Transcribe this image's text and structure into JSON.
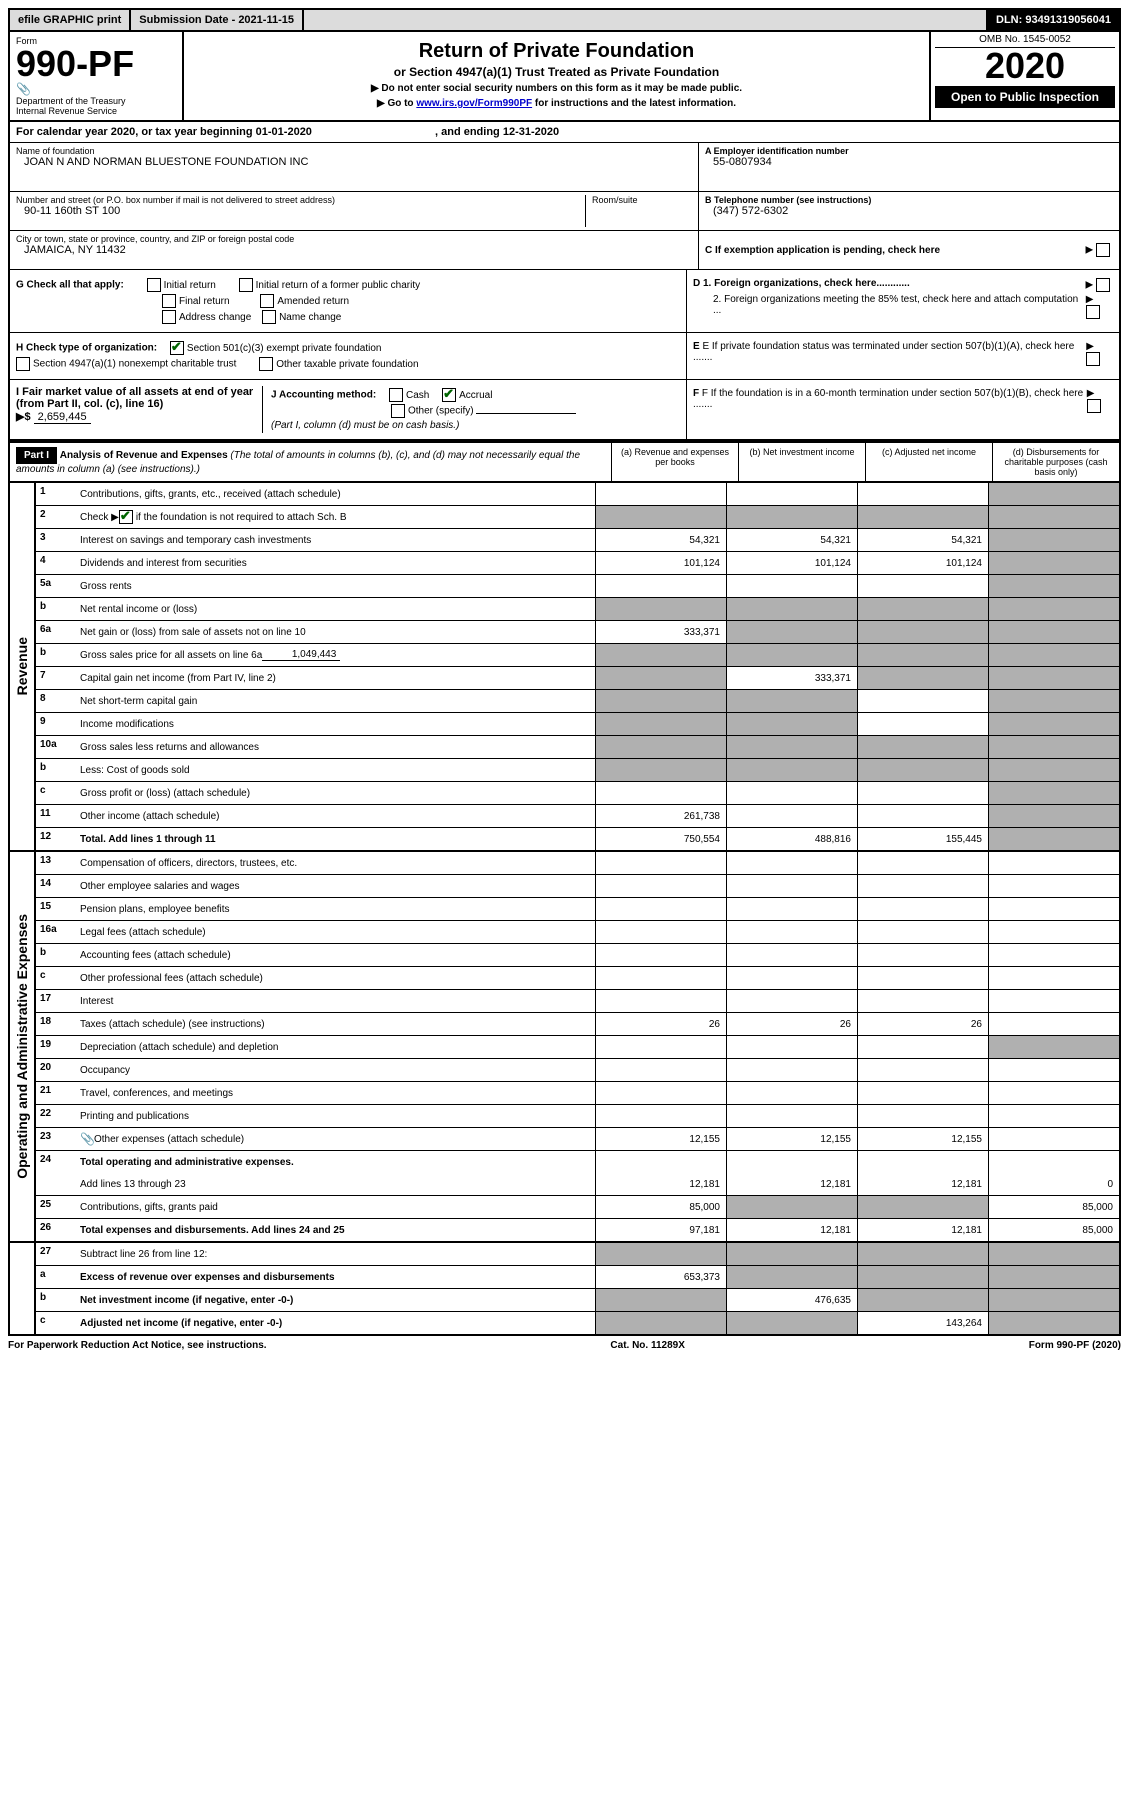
{
  "topbar": {
    "efile": "efile GRAPHIC print",
    "submission_label": "Submission Date - 2021-11-15",
    "dln": "DLN: 93491319056041"
  },
  "form": {
    "prefix": "Form",
    "number": "990-PF",
    "dept": "Department of the Treasury",
    "irs": "Internal Revenue Service"
  },
  "title": {
    "main": "Return of Private Foundation",
    "sub": "or Section 4947(a)(1) Trust Treated as Private Foundation",
    "instr1": "▶ Do not enter social security numbers on this form as it may be made public.",
    "instr2_prefix": "▶ Go to ",
    "instr2_link": "www.irs.gov/Form990PF",
    "instr2_suffix": " for instructions and the latest information."
  },
  "yearbox": {
    "omb": "OMB No. 1545-0052",
    "year": "2020",
    "open": "Open to Public Inspection"
  },
  "cal_year": {
    "prefix": "For calendar year 2020, or tax year beginning ",
    "begin": "01-01-2020",
    "mid": " , and ending ",
    "end": "12-31-2020"
  },
  "info": {
    "name_label": "Name of foundation",
    "name_value": "JOAN N AND NORMAN BLUESTONE FOUNDATION INC",
    "addr_label": "Number and street (or P.O. box number if mail is not delivered to street address)",
    "addr_value": "90-11 160th ST 100",
    "room_label": "Room/suite",
    "city_label": "City or town, state or province, country, and ZIP or foreign postal code",
    "city_value": "JAMAICA, NY  11432",
    "ein_label": "A Employer identification number",
    "ein_value": "55-0807934",
    "phone_label": "B Telephone number (see instructions)",
    "phone_value": "(347) 572-6302",
    "c_label": "C If exemption application is pending, check here"
  },
  "g_section": {
    "label": "G Check all that apply:",
    "opts": [
      "Initial return",
      "Initial return of a former public charity",
      "Final return",
      "Amended return",
      "Address change",
      "Name change"
    ]
  },
  "h_section": {
    "label": "H Check type of organization:",
    "opt1": "Section 501(c)(3) exempt private foundation",
    "opt2": "Section 4947(a)(1) nonexempt charitable trust",
    "opt3": "Other taxable private foundation"
  },
  "i_section": {
    "label": "I Fair market value of all assets at end of year (from Part II, col. (c), line 16)",
    "arrow": "▶$",
    "value": "2,659,445"
  },
  "j_section": {
    "label": "J Accounting method:",
    "cash": "Cash",
    "accrual": "Accrual",
    "other": "Other (specify)",
    "note": "(Part I, column (d) must be on cash basis.)"
  },
  "d_section": {
    "d1": "D 1. Foreign organizations, check here............",
    "d2": "2. Foreign organizations meeting the 85% test, check here and attach computation ...",
    "e": "E If private foundation status was terminated under section 507(b)(1)(A), check here .......",
    "f": "F If the foundation is in a 60-month termination under section 507(b)(1)(B), check here ......."
  },
  "part1": {
    "label": "Part I",
    "title": "Analysis of Revenue and Expenses",
    "note": "(The total of amounts in columns (b), (c), and (d) may not necessarily equal the amounts in column (a) (see instructions).)",
    "col_a": "(a) Revenue and expenses per books",
    "col_b": "(b) Net investment income",
    "col_c": "(c) Adjusted net income",
    "col_d": "(d) Disbursements for charitable purposes (cash basis only)"
  },
  "side": {
    "revenue": "Revenue",
    "expenses": "Operating and Administrative Expenses"
  },
  "rows": {
    "r1": {
      "num": "1",
      "desc": "Contributions, gifts, grants, etc., received (attach schedule)"
    },
    "r2": {
      "num": "2",
      "desc": "Check ▶ ",
      "desc2": " if the foundation is not required to attach Sch. B"
    },
    "r3": {
      "num": "3",
      "desc": "Interest on savings and temporary cash investments",
      "a": "54,321",
      "b": "54,321",
      "c": "54,321"
    },
    "r4": {
      "num": "4",
      "desc": "Dividends and interest from securities",
      "a": "101,124",
      "b": "101,124",
      "c": "101,124"
    },
    "r5a": {
      "num": "5a",
      "desc": "Gross rents"
    },
    "r5b": {
      "num": "b",
      "desc": "Net rental income or (loss)"
    },
    "r6a": {
      "num": "6a",
      "desc": "Net gain or (loss) from sale of assets not on line 10",
      "a": "333,371"
    },
    "r6b": {
      "num": "b",
      "desc": "Gross sales price for all assets on line 6a",
      "inline": "1,049,443"
    },
    "r7": {
      "num": "7",
      "desc": "Capital gain net income (from Part IV, line 2)",
      "b": "333,371"
    },
    "r8": {
      "num": "8",
      "desc": "Net short-term capital gain"
    },
    "r9": {
      "num": "9",
      "desc": "Income modifications"
    },
    "r10a": {
      "num": "10a",
      "desc": "Gross sales less returns and allowances"
    },
    "r10b": {
      "num": "b",
      "desc": "Less: Cost of goods sold"
    },
    "r10c": {
      "num": "c",
      "desc": "Gross profit or (loss) (attach schedule)"
    },
    "r11": {
      "num": "11",
      "desc": "Other income (attach schedule)",
      "a": "261,738"
    },
    "r12": {
      "num": "12",
      "desc": "Total. Add lines 1 through 11",
      "a": "750,554",
      "b": "488,816",
      "c": "155,445"
    },
    "r13": {
      "num": "13",
      "desc": "Compensation of officers, directors, trustees, etc."
    },
    "r14": {
      "num": "14",
      "desc": "Other employee salaries and wages"
    },
    "r15": {
      "num": "15",
      "desc": "Pension plans, employee benefits"
    },
    "r16a": {
      "num": "16a",
      "desc": "Legal fees (attach schedule)"
    },
    "r16b": {
      "num": "b",
      "desc": "Accounting fees (attach schedule)"
    },
    "r16c": {
      "num": "c",
      "desc": "Other professional fees (attach schedule)"
    },
    "r17": {
      "num": "17",
      "desc": "Interest"
    },
    "r18": {
      "num": "18",
      "desc": "Taxes (attach schedule) (see instructions)",
      "a": "26",
      "b": "26",
      "c": "26"
    },
    "r19": {
      "num": "19",
      "desc": "Depreciation (attach schedule) and depletion"
    },
    "r20": {
      "num": "20",
      "desc": "Occupancy"
    },
    "r21": {
      "num": "21",
      "desc": "Travel, conferences, and meetings"
    },
    "r22": {
      "num": "22",
      "desc": "Printing and publications"
    },
    "r23": {
      "num": "23",
      "desc": "Other expenses (attach schedule)",
      "a": "12,155",
      "b": "12,155",
      "c": "12,155",
      "icon": true
    },
    "r24": {
      "num": "24",
      "desc": "Total operating and administrative expenses.",
      "desc2": "Add lines 13 through 23",
      "a": "12,181",
      "b": "12,181",
      "c": "12,181",
      "d": "0"
    },
    "r25": {
      "num": "25",
      "desc": "Contributions, gifts, grants paid",
      "a": "85,000",
      "d": "85,000"
    },
    "r26": {
      "num": "26",
      "desc": "Total expenses and disbursements. Add lines 24 and 25",
      "a": "97,181",
      "b": "12,181",
      "c": "12,181",
      "d": "85,000"
    },
    "r27": {
      "num": "27",
      "desc": "Subtract line 26 from line 12:"
    },
    "r27a": {
      "num": "a",
      "desc": "Excess of revenue over expenses and disbursements",
      "a": "653,373"
    },
    "r27b": {
      "num": "b",
      "desc": "Net investment income (if negative, enter -0-)",
      "b": "476,635"
    },
    "r27c": {
      "num": "c",
      "desc": "Adjusted net income (if negative, enter -0-)",
      "c": "143,264"
    }
  },
  "footer": {
    "left": "For Paperwork Reduction Act Notice, see instructions.",
    "mid": "Cat. No. 11289X",
    "right": "Form 990-PF (2020)"
  },
  "colors": {
    "header_bg": "#dcdcdc",
    "shaded": "#b0b0b0",
    "link": "#0000cc",
    "check": "#006400"
  }
}
